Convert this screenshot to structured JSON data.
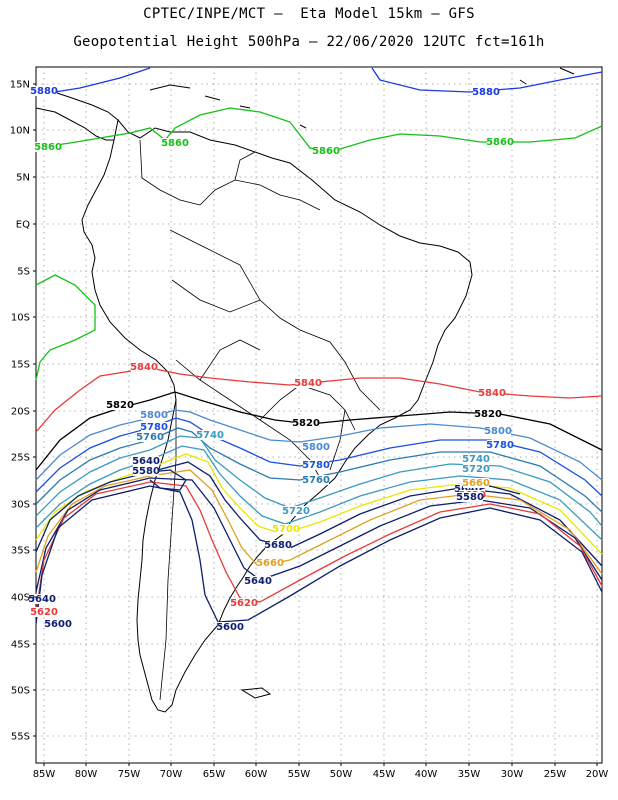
{
  "header": {
    "line1": "CPTEC/INPE/MCT –  Eta Model 15km – GFS",
    "line2": "Geopotential Height 500hPa – 22/06/2020 12UTC fct=161h"
  },
  "axes": {
    "lat_labels": [
      "15N",
      "10N",
      "5N",
      "EQ",
      "5S",
      "10S",
      "15S",
      "20S",
      "25S",
      "30S",
      "35S",
      "40S",
      "45S",
      "50S",
      "55S"
    ],
    "lon_labels": [
      "85W",
      "80W",
      "75W",
      "70W",
      "65W",
      "60W",
      "55W",
      "50W",
      "45W",
      "40W",
      "35W",
      "30W",
      "25W",
      "20W"
    ]
  },
  "contour_colors": {
    "5580": "#0d1e6e",
    "5600": "#0d1e6e",
    "5620": "#e83a3a",
    "5640": "#0d1e6e",
    "5660": "#e0a020",
    "5700": "#e8e800",
    "5720": "#3a9ac0",
    "5740": "#3a9ac0",
    "5760": "#2a7ab0",
    "5780": "#1a50e0",
    "5800": "#4a8ad0",
    "5820": "#000000",
    "5840": "#e83a3a",
    "5860": "#16c016",
    "5880": "#1a3ae0"
  },
  "contour_labels": [
    {
      "text": "5880",
      "color": "#1a3ae0"
    },
    {
      "text": "5880",
      "color": "#1a3ae0"
    },
    {
      "text": "5860",
      "color": "#16c016"
    },
    {
      "text": "5860",
      "color": "#16c016"
    },
    {
      "text": "5860",
      "color": "#16c016"
    },
    {
      "text": "5860",
      "color": "#16c016"
    },
    {
      "text": "5840",
      "color": "#e83a3a"
    },
    {
      "text": "5840",
      "color": "#e83a3a"
    },
    {
      "text": "5840",
      "color": "#e83a3a"
    },
    {
      "text": "5820",
      "color": "#000000"
    },
    {
      "text": "5820",
      "color": "#000000"
    },
    {
      "text": "5820",
      "color": "#000000"
    },
    {
      "text": "5800",
      "color": "#4a8ad0"
    },
    {
      "text": "5780",
      "color": "#1a50e0"
    },
    {
      "text": "5760",
      "color": "#2a7ab0"
    },
    {
      "text": "5740",
      "color": "#3a9ac0"
    },
    {
      "text": "5800",
      "color": "#4a8ad0"
    },
    {
      "text": "5780",
      "color": "#1a50e0"
    },
    {
      "text": "5760",
      "color": "#2a7ab0"
    },
    {
      "text": "5800",
      "color": "#4a8ad0"
    },
    {
      "text": "5780",
      "color": "#1a50e0"
    },
    {
      "text": "5740",
      "color": "#3a9ac0"
    },
    {
      "text": "5720",
      "color": "#3a9ac0"
    },
    {
      "text": "5640",
      "color": "#0d1e6e"
    },
    {
      "text": "5580",
      "color": "#0d1e6e"
    },
    {
      "text": "5720",
      "color": "#3a9ac0"
    },
    {
      "text": "5700",
      "color": "#e8e800"
    },
    {
      "text": "5680",
      "color": "#0d1e6e"
    },
    {
      "text": "5660",
      "color": "#e0a020"
    },
    {
      "text": "5640",
      "color": "#0d1e6e"
    },
    {
      "text": "5620",
      "color": "#e83a3a"
    },
    {
      "text": "5600",
      "color": "#0d1e6e"
    },
    {
      "text": "5640",
      "color": "#0d1e6e"
    },
    {
      "text": "5620",
      "color": "#e83a3a"
    },
    {
      "text": "5600",
      "color": "#0d1e6e"
    },
    {
      "text": "5640",
      "color": "#0d1e6e"
    },
    {
      "text": "5660",
      "color": "#e0a020"
    },
    {
      "text": "5620",
      "color": "#e83a3a"
    },
    {
      "text": "5580",
      "color": "#0d1e6e"
    }
  ]
}
